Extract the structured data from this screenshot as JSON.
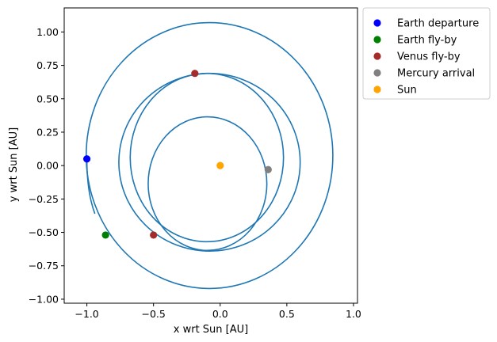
{
  "chart_data": {
    "type": "scatter",
    "xlabel": "x wrt Sun [AU]",
    "ylabel": "y wrt Sun [AU]",
    "xlim": [
      -1.17,
      1.03
    ],
    "ylim": [
      -1.03,
      1.18
    ],
    "xticks": [
      -1.0,
      -0.5,
      0.0,
      0.5,
      1.0
    ],
    "xtick_labels": [
      "−1.0",
      "−0.5",
      "0.0",
      "0.5",
      "1.0"
    ],
    "yticks": [
      -1.0,
      -0.75,
      -0.5,
      -0.25,
      0.0,
      0.25,
      0.5,
      0.75,
      1.0
    ],
    "ytick_labels": [
      "−1.00",
      "−0.75",
      "−0.50",
      "−0.25",
      "0.00",
      "0.25",
      "0.50",
      "0.75",
      "1.00"
    ],
    "grid": false,
    "legend_position": "outside-top-right",
    "trajectory_color": "#1f77b4",
    "points": [
      {
        "name": "Earth departure",
        "x": -1.0,
        "y": 0.05,
        "color": "#0000ff"
      },
      {
        "name": "Earth fly-by",
        "x": -0.86,
        "y": -0.52,
        "color": "#008000"
      },
      {
        "name": "Venus fly-by",
        "x": -0.19,
        "y": 0.69,
        "color": "#a52a2a"
      },
      {
        "name": "Venus fly-by",
        "x": -0.5,
        "y": -0.52,
        "color": "#a52a2a"
      },
      {
        "name": "Mercury arrival",
        "x": 0.36,
        "y": -0.03,
        "color": "#808080"
      },
      {
        "name": "Sun",
        "x": 0.0,
        "y": 0.0,
        "color": "#ffa500"
      }
    ],
    "legend": [
      {
        "label": "Earth departure",
        "color": "#0000ff"
      },
      {
        "label": "Earth fly-by",
        "color": "#008000"
      },
      {
        "label": "Venus fly-by",
        "color": "#a52a2a"
      },
      {
        "label": "Mercury arrival",
        "color": "#808080"
      },
      {
        "label": "Sun",
        "color": "#ffa500"
      }
    ],
    "trajectory_loops": [
      {
        "cx": -0.08,
        "cy": 0.075,
        "rx": 0.925,
        "ry": 0.995
      },
      {
        "cx": -0.08,
        "cy": 0.025,
        "rx": 0.68,
        "ry": 0.665
      },
      {
        "cx": -0.1,
        "cy": 0.06,
        "rx": 0.575,
        "ry": 0.63
      },
      {
        "cx": -0.095,
        "cy": -0.135,
        "rx": 0.445,
        "ry": 0.5
      }
    ]
  }
}
